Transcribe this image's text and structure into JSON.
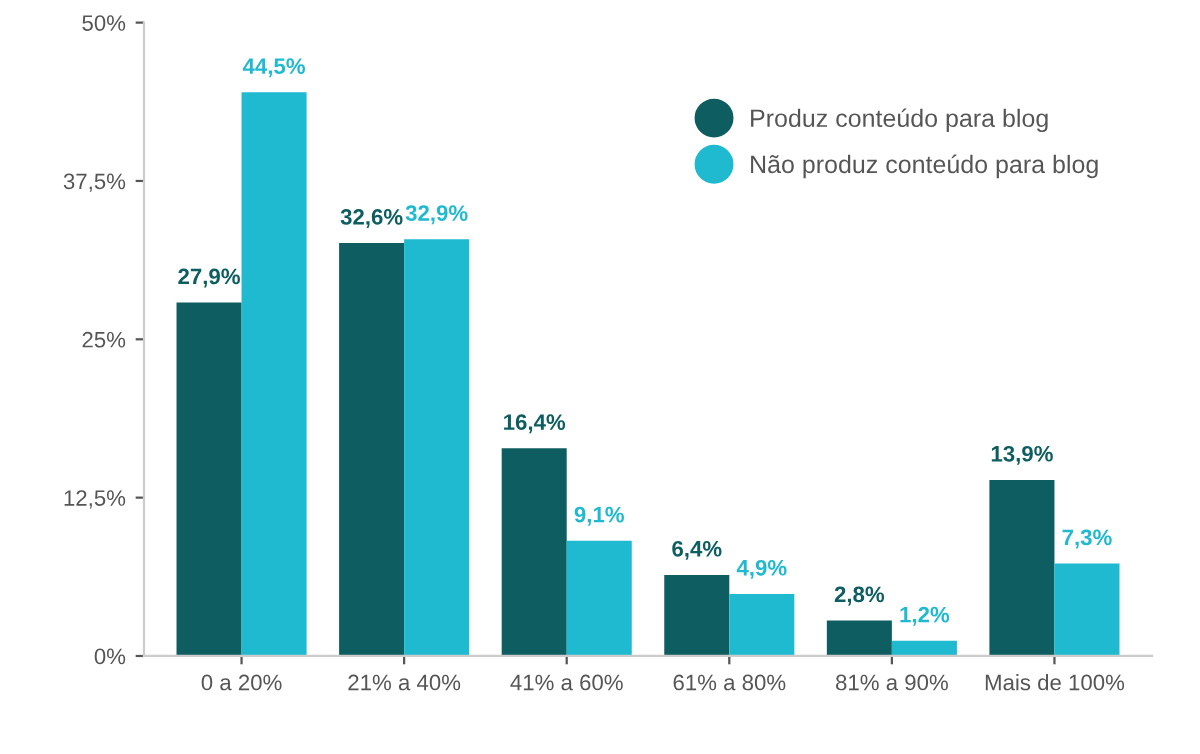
{
  "chart_data": {
    "type": "bar",
    "categories": [
      "0 a 20%",
      "21% a 40%",
      "41% a 60%",
      "61% a 80%",
      "81% a 90%",
      "Mais de 100%"
    ],
    "series": [
      {
        "name": "Produz conteúdo para blog",
        "color": "#0e5e61",
        "values": [
          27.9,
          32.6,
          16.4,
          6.4,
          2.8,
          13.9
        ],
        "value_labels": [
          "27,9%",
          "32,6%",
          "16,4%",
          "6,4%",
          "2,8%",
          "13,9%"
        ]
      },
      {
        "name": "Não produz conteúdo para blog",
        "color": "#1fb9d0",
        "values": [
          44.5,
          32.9,
          9.1,
          4.9,
          1.2,
          7.3
        ],
        "value_labels": [
          "44,5%",
          "32,9%",
          "9,1%",
          "4,9%",
          "1,2%",
          "7,3%"
        ]
      }
    ],
    "ylim": [
      0,
      50
    ],
    "yticks": [
      {
        "value": 0,
        "label": "0%"
      },
      {
        "value": 12.5,
        "label": "12,5%"
      },
      {
        "value": 25,
        "label": "25%"
      },
      {
        "value": 37.5,
        "label": "37,5%"
      },
      {
        "value": 50,
        "label": "50%"
      }
    ],
    "grid": false,
    "legend": "top right",
    "marker": "circle"
  }
}
